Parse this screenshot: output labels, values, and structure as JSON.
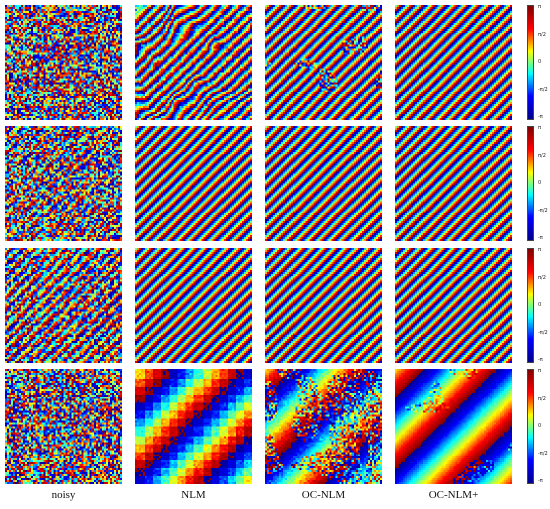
{
  "figure": {
    "columns": [
      "noisy",
      "NLM",
      "OC-NLM",
      "OC-NLM+"
    ],
    "colorbar_ticks": [
      "π",
      "π/2",
      "0",
      "-π/2",
      "-π"
    ],
    "rows": [
      {
        "content": [
          "random noise",
          "fringes, heavy noise",
          "fringes, mild noise",
          "fringes, clean"
        ]
      },
      {
        "content": [
          "fringes, heavy noise",
          "fringes, clean",
          "fringes, clean",
          "fringes, clean"
        ]
      },
      {
        "content": [
          "fringes, moderate noise",
          "fringes, clean",
          "fringes, clean",
          "fringes, clean"
        ]
      },
      {
        "content": [
          "random noise",
          "wide bands, blocky",
          "wide bands, noisy",
          "wide bands, clean"
        ]
      }
    ]
  },
  "colormap": [
    "#00008f",
    "#0000ff",
    "#00ffff",
    "#ffff00",
    "#ff0000",
    "#800000"
  ]
}
